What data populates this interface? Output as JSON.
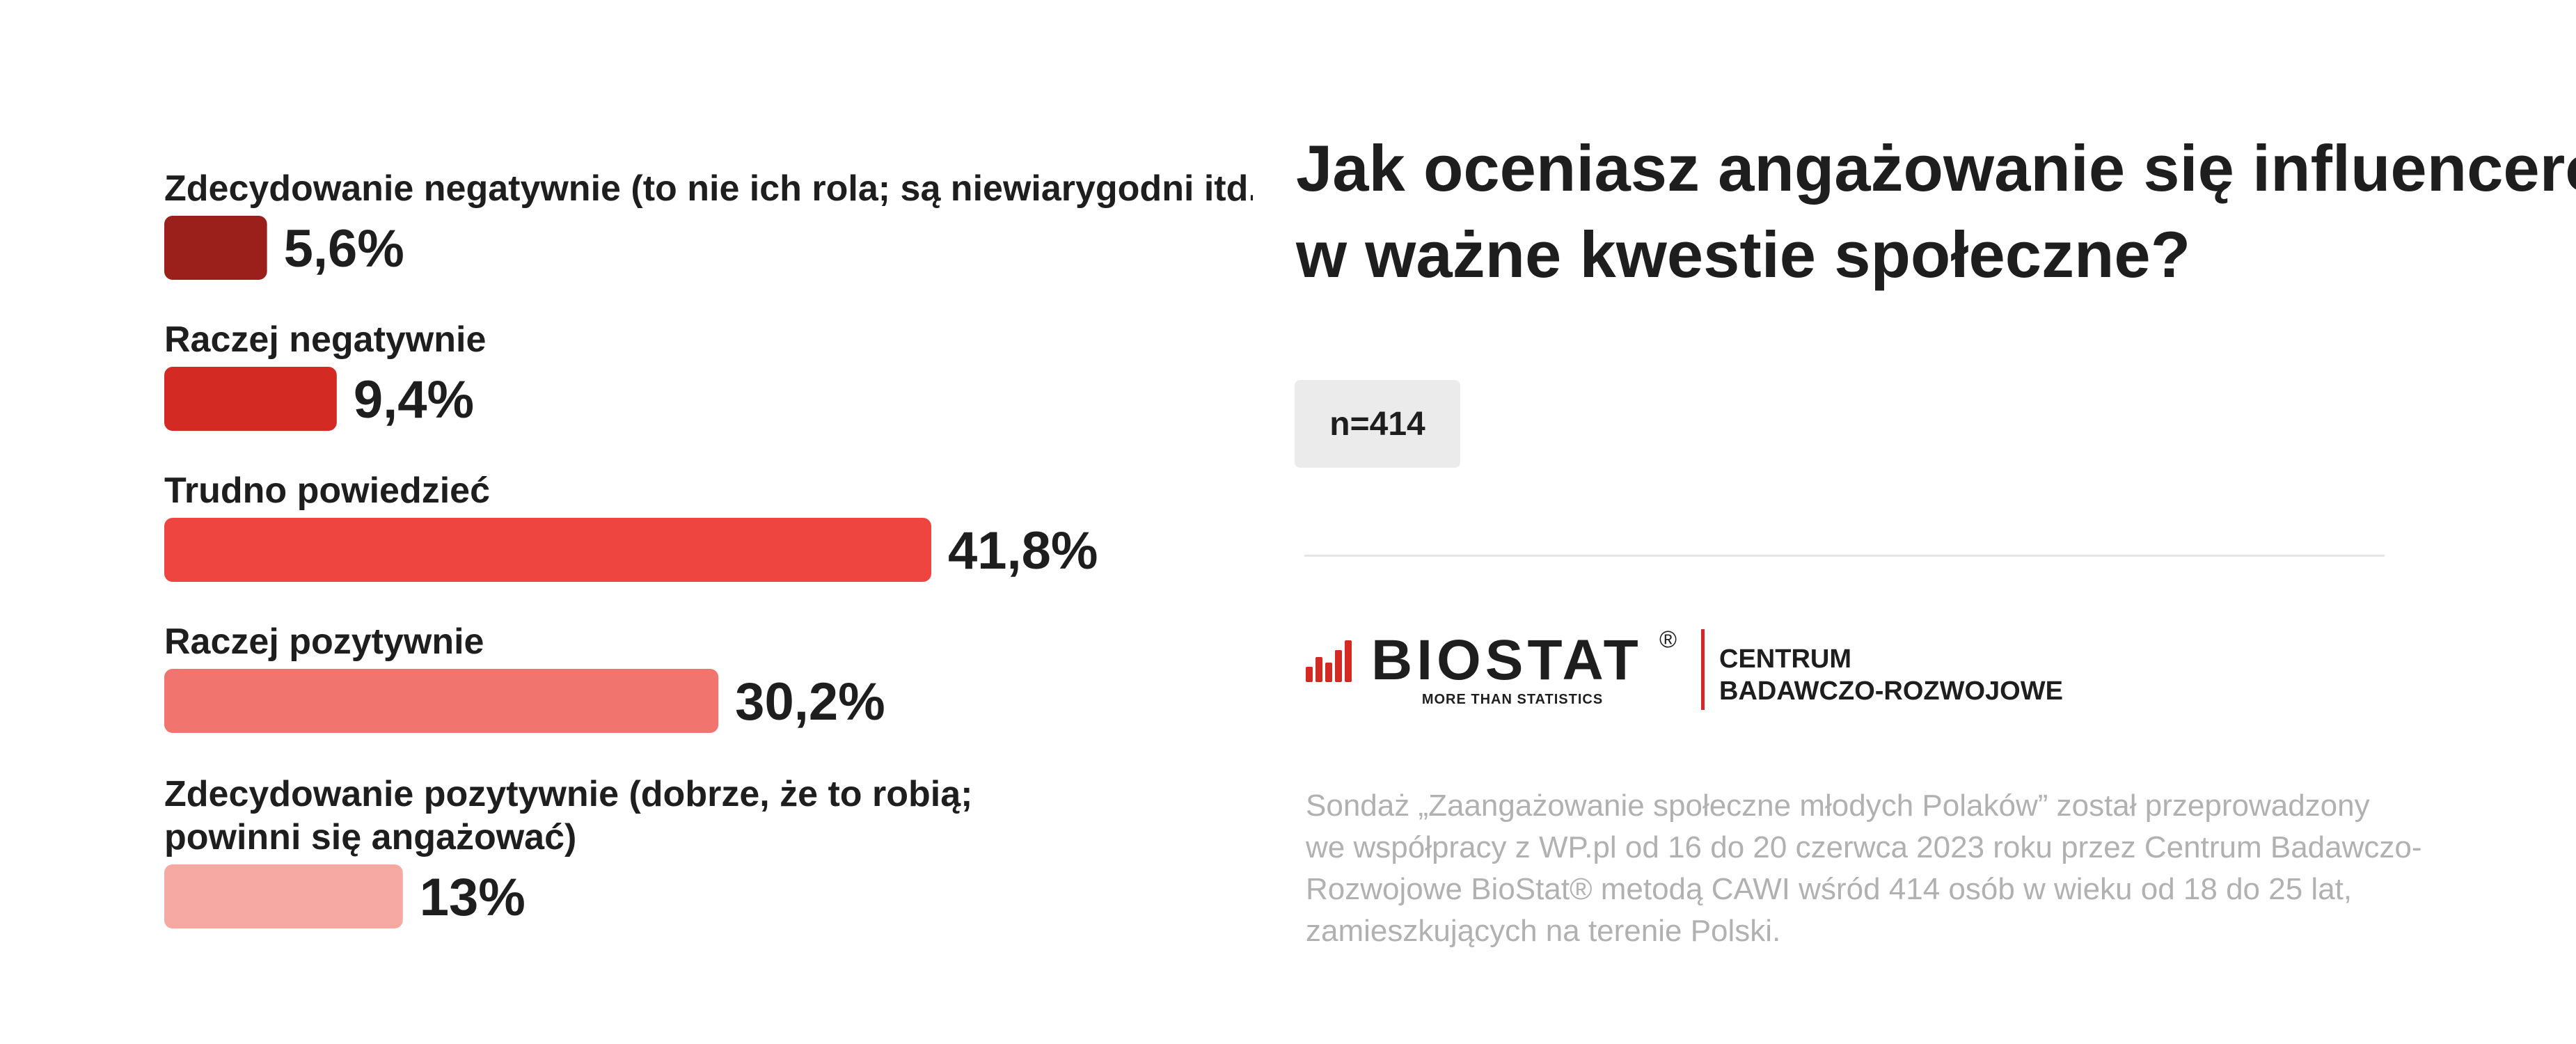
{
  "chart_data": {
    "type": "bar",
    "orientation": "horizontal",
    "categories": [
      [
        "Zdecydowanie negatywnie (to nie ich rola; są niewiarygodni itd.)"
      ],
      [
        "Raczej negatywnie"
      ],
      [
        "Trudno powiedzieć"
      ],
      [
        "Raczej pozytywnie"
      ],
      [
        "Zdecydowanie pozytywnie (dobrze, że to robią;",
        "powinni się angażować)"
      ]
    ],
    "values": [
      5.6,
      9.4,
      41.8,
      30.2,
      13
    ],
    "value_labels": [
      "5,6%",
      "9,4%",
      "41,8%",
      "30,2%",
      "13%"
    ],
    "unit": "%",
    "colors": [
      "#9b1f1a",
      "#d32a24",
      "#ee4540",
      "#f2746e",
      "#f6a8a3"
    ]
  },
  "title_lines": [
    "Jak oceniasz angażowanie się influencerów",
    "w ważne kwestie społeczne?"
  ],
  "sample_size": "n=414",
  "logo": {
    "wordmark": "BIOSTAT",
    "registered": "®",
    "tagline": "MORE THAN STATISTICS",
    "centrum_lines": [
      "CENTRUM",
      "BADAWCZO-ROZWOJOWE"
    ],
    "accent_color": "#d32a24"
  },
  "footnote_lines": [
    "Sondaż  „Zaangażowanie społeczne młodych Polaków” został przeprowadzony",
    "we współpracy z WP.pl od 16 do 20 czerwca 2023 roku przez Centrum Badawczo-",
    "Rozwojowe BioStat® metodą CAWI wśród 414 osób w wieku od 18 do 25 lat,",
    "zamieszkujących na terenie Polski."
  ]
}
